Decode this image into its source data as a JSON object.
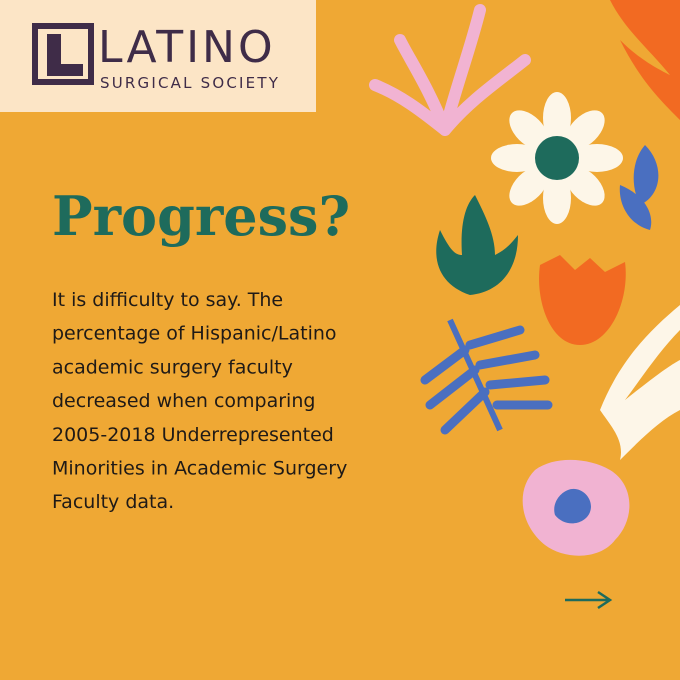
{
  "logo": {
    "name": "LATINO",
    "subtitle": "SURGICAL SOCIETY"
  },
  "title": "Progress?",
  "body_lines": [
    "It is difficulty to say. The",
    "percentage of Hispanic/Latino",
    "academic surgery faculty",
    "decreased when comparing",
    "2005-2018  Underrepresented",
    "Minorities in Academic Surgery",
    "Faculty data."
  ]
}
